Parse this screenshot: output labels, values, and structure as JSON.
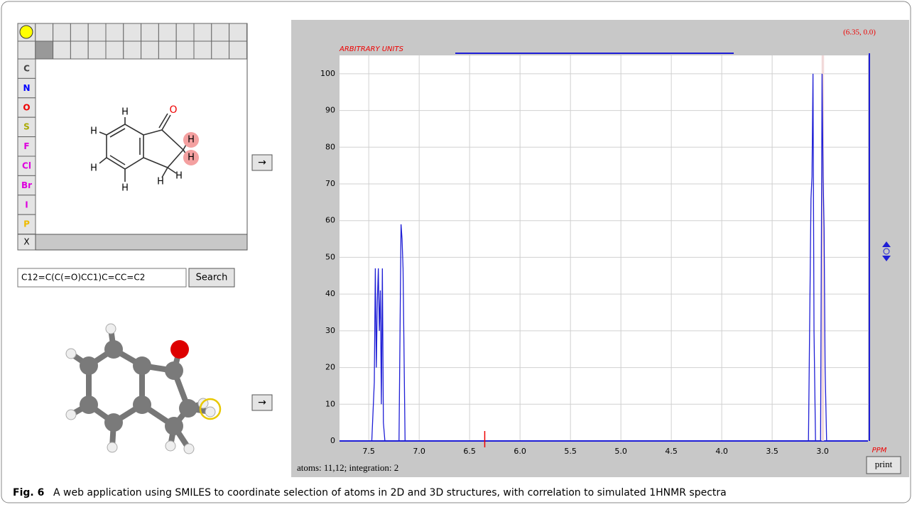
{
  "editor": {
    "atom_buttons": [
      "C",
      "N",
      "O",
      "S",
      "F",
      "Cl",
      "Br",
      "I",
      "P"
    ],
    "clear_button": "X",
    "atom_labels": [
      "O",
      "H",
      "H",
      "H",
      "H",
      "H",
      "H",
      "H",
      "H"
    ]
  },
  "arrows": [
    "→",
    "→"
  ],
  "smiles": {
    "input": "C12=C(C(=O)CC1)C=CC=C2",
    "button": "Search"
  },
  "chart_data": {
    "type": "line",
    "ylabel": "ARBITRARY UNITS",
    "xlabel": "PPM",
    "annotation": "(6.35, 0.0)",
    "cursor": 6.35,
    "highlight": [
      3.01,
      2.985
    ],
    "grid": true,
    "xlim": [
      7.79,
      2.55
    ],
    "ylim": [
      0,
      105
    ],
    "xticks": [
      7.5,
      {
        "value": 7,
        "label": "7.0"
      },
      6.5,
      {
        "value": 6,
        "label": "6.0"
      },
      5.5,
      {
        "value": 5,
        "label": "5.0"
      },
      4.5,
      {
        "value": 4,
        "label": "4.0"
      },
      3.5,
      {
        "value": 3,
        "label": "3.0"
      }
    ],
    "yticks": [
      0,
      10,
      20,
      30,
      40,
      50,
      60,
      70,
      80,
      90,
      100
    ],
    "series": [
      {
        "color": "#1f1fd6",
        "x": [
          7.79,
          7.47,
          7.445,
          7.435,
          7.425,
          7.415,
          7.405,
          7.395,
          7.385,
          7.375,
          7.365,
          7.355,
          7.34,
          7.2,
          7.18,
          7.17,
          7.16,
          7.14,
          3.14,
          3.115,
          3.105,
          3.095,
          3.085,
          3.07,
          3.02,
          3.005,
          2.995,
          2.985,
          2.975,
          2.96,
          2.55
        ],
        "values": [
          0,
          0,
          16,
          47,
          20,
          38,
          47,
          30,
          41,
          10,
          47,
          5,
          0,
          0,
          59,
          55,
          47,
          0,
          0,
          66,
          72,
          100,
          30,
          0,
          0,
          100,
          72,
          58,
          20,
          0,
          0
        ]
      }
    ]
  },
  "status": "atoms: 11,12; integration: 2",
  "print_button": "print",
  "caption": {
    "label": "Fig. 6",
    "text": "A web application using SMILES to coordinate selection of atoms in 2D and 3D structures, with correlation to simulated 1HNMR spectra"
  }
}
